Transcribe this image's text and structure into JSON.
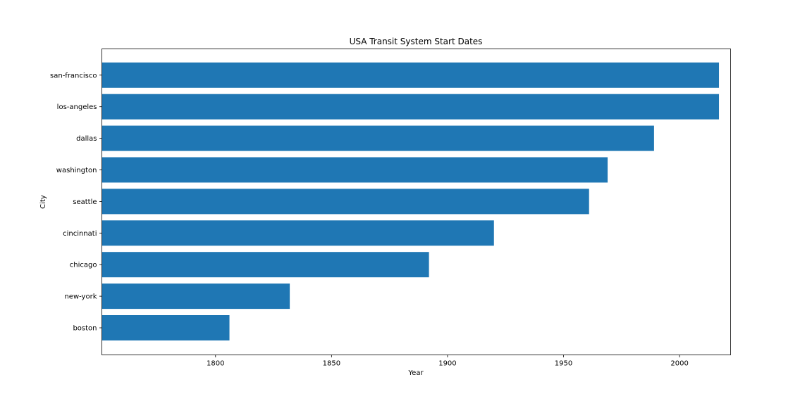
{
  "chart_data": {
    "type": "bar",
    "orientation": "horizontal",
    "title": "USA Transit System Start Dates",
    "xlabel": "Year",
    "ylabel": "City",
    "categories": [
      "boston",
      "new-york",
      "chicago",
      "cincinnati",
      "seattle",
      "washington",
      "dallas",
      "los-angeles",
      "san-francisco"
    ],
    "values": [
      1806,
      1832,
      1892,
      1920,
      1961,
      1969,
      1989,
      2017,
      2017
    ],
    "xlim": [
      1751,
      2022
    ],
    "xticks": [
      1800,
      1850,
      1900,
      1950,
      2000
    ],
    "grid": false,
    "bar_color": "#1f77b4"
  }
}
